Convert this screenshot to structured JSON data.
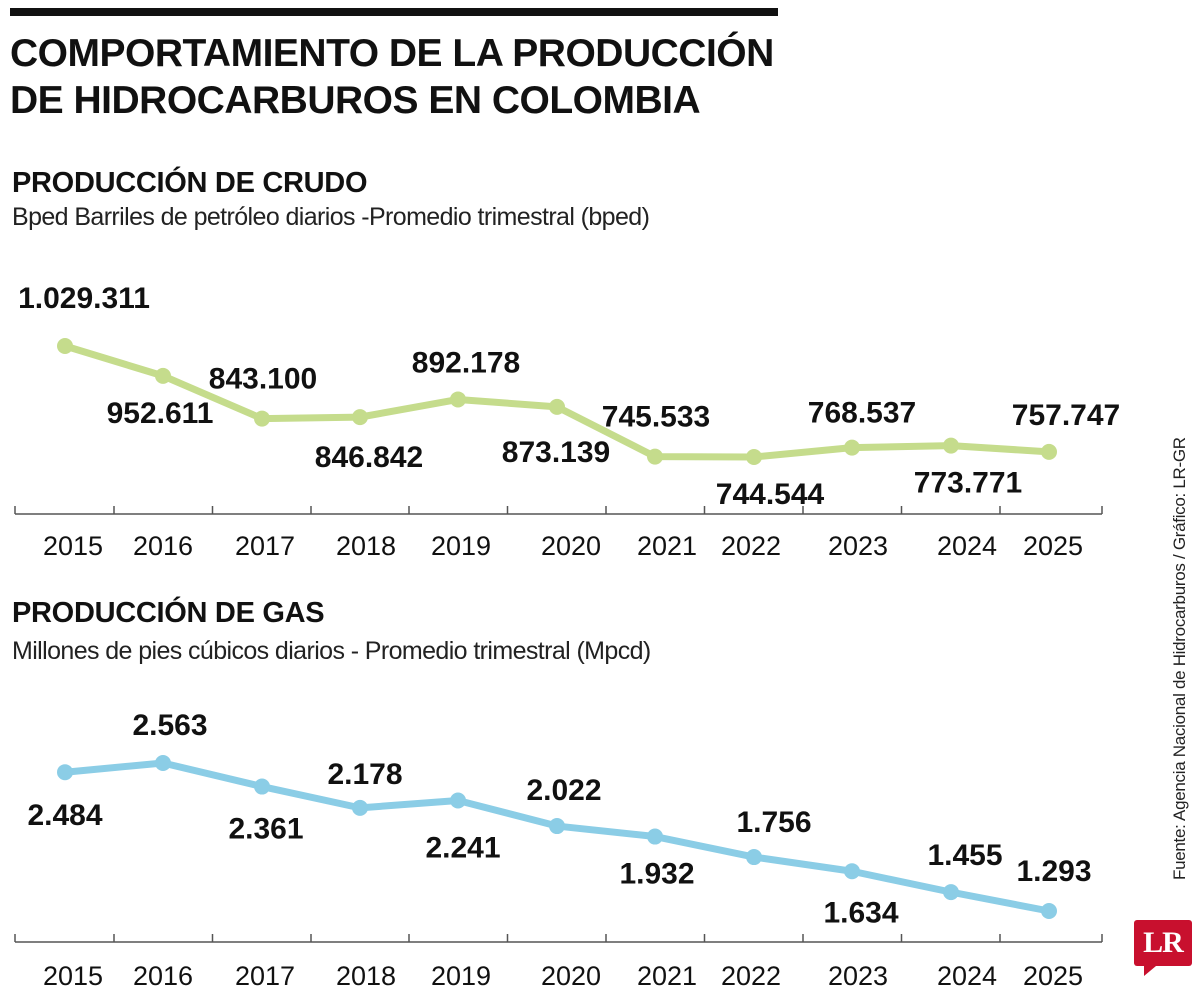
{
  "header": {
    "title_line1": "COMPORTAMIENTO DE LA PRODUCCIÓN",
    "title_line2": "DE HIDROCARBUROS EN COLOMBIA"
  },
  "chart_data": [
    {
      "type": "line",
      "title": "PRODUCCIÓN DE CRUDO",
      "subtitle": "Bped Barriles de petróleo diarios -Promedio trimestral (bped)",
      "categories": [
        "2015",
        "2016",
        "2017",
        "2018",
        "2019",
        "2020",
        "2021",
        "2022",
        "2023",
        "2024",
        "2025"
      ],
      "series": [
        {
          "values": [
            1029311,
            952611,
            843100,
            846842,
            892178,
            873139,
            745533,
            744544,
            768537,
            773771,
            757747
          ],
          "labels": [
            "1.029.311",
            "952.611",
            "843.100",
            "846.842",
            "892.178",
            "873.139",
            "745.533",
            "744.544",
            "768.537",
            "773.771",
            "757.747"
          ],
          "color": "#c5dc8c"
        }
      ],
      "xlabel": "",
      "ylabel": "",
      "grid": false,
      "legend": "none"
    },
    {
      "type": "line",
      "title": "PRODUCCIÓN DE GAS",
      "subtitle": "Millones de pies cúbicos diarios - Promedio trimestral (Mpcd)",
      "categories": [
        "2015",
        "2016",
        "2017",
        "2018",
        "2019",
        "2020",
        "2021",
        "2022",
        "2023",
        "2024",
        "2025"
      ],
      "series": [
        {
          "values": [
            2484,
            2563,
            2361,
            2178,
            2241,
            2022,
            1932,
            1756,
            1634,
            1455,
            1293
          ],
          "labels": [
            "2.484",
            "2.563",
            "2.361",
            "2.178",
            "2.241",
            "2.022",
            "1.932",
            "1.756",
            "1.634",
            "1.455",
            "1.293"
          ],
          "color": "#8bcde6"
        }
      ],
      "xlabel": "",
      "ylabel": "",
      "grid": false,
      "legend": "none"
    }
  ],
  "source_note": "Fuente: Agencia Nacional de Hidrocarburos / Gráfico: LR-GR",
  "logo": {
    "text": "LR",
    "color": "#c8102e"
  }
}
